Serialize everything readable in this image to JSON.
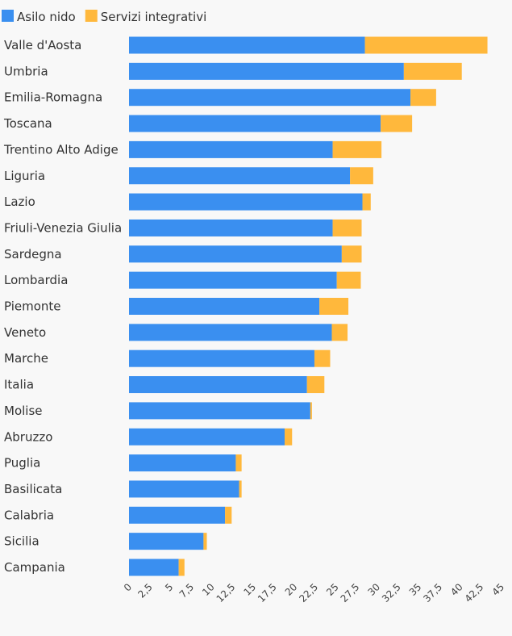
{
  "chart_data": {
    "type": "bar",
    "orientation": "horizontal",
    "stacked": true,
    "categories": [
      "Valle d'Aosta",
      "Umbria",
      "Emilia-Romagna",
      "Toscana",
      "Trentino Alto Adige",
      "Liguria",
      "Lazio",
      "Friuli-Venezia Giulia",
      "Sardegna",
      "Lombardia",
      "Piemonte",
      "Veneto",
      "Marche",
      "Italia",
      "Molise",
      "Abruzzo",
      "Puglia",
      "Basilicata",
      "Calabria",
      "Sicilia",
      "Campania"
    ],
    "series": [
      {
        "name": "Asilo nido",
        "color": "#3a8ff0",
        "values": [
          28.5,
          33.2,
          34.0,
          30.4,
          24.6,
          26.7,
          28.2,
          24.6,
          25.7,
          25.1,
          23.0,
          24.5,
          22.4,
          21.5,
          21.9,
          18.8,
          12.9,
          13.3,
          11.6,
          9.0,
          6.0
        ]
      },
      {
        "name": "Servizi integrativi",
        "color": "#ffb83c",
        "values": [
          14.8,
          7.0,
          3.1,
          3.8,
          5.9,
          2.8,
          1.0,
          3.5,
          2.4,
          2.9,
          3.5,
          1.9,
          1.9,
          2.1,
          0.2,
          0.9,
          0.7,
          0.3,
          0.8,
          0.4,
          0.7
        ]
      }
    ],
    "xlim": [
      0,
      45
    ],
    "xticks": [
      "0",
      "2,5",
      "5",
      "7,5",
      "10",
      "12,5",
      "15",
      "17,5",
      "20",
      "22,5",
      "25",
      "27,5",
      "30",
      "32,5",
      "35",
      "37,5",
      "40",
      "42,5",
      "45"
    ],
    "grid": false,
    "legend_position": "top-left"
  }
}
